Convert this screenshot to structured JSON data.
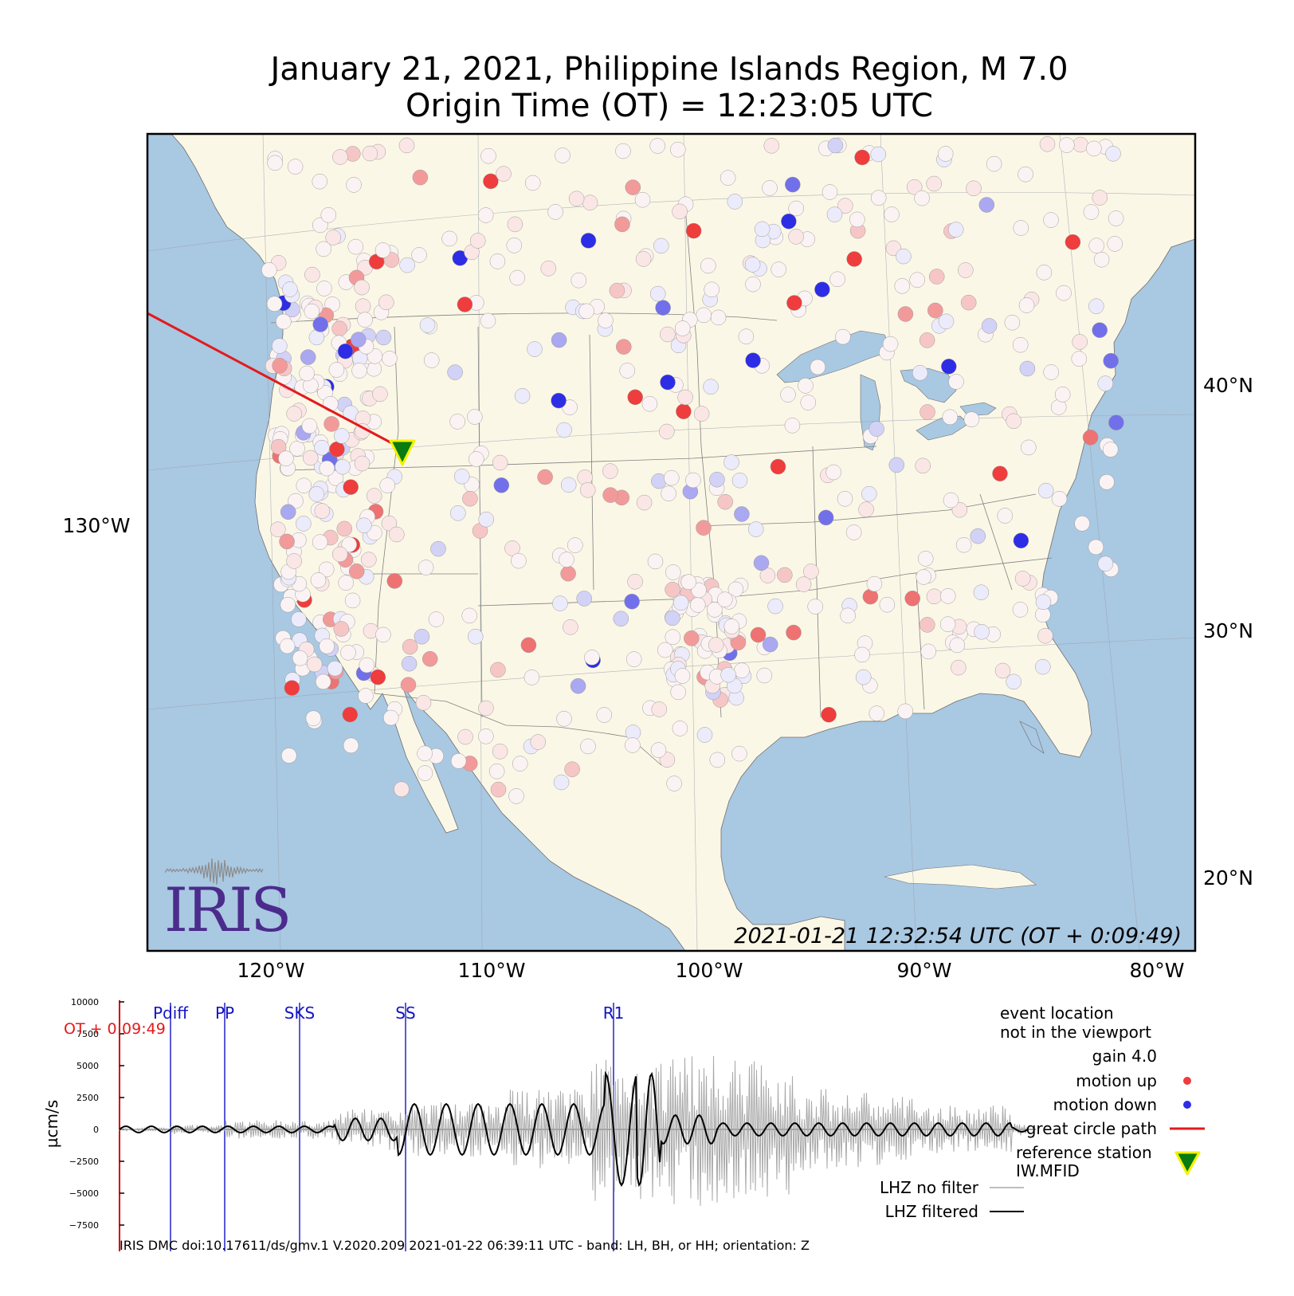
{
  "title": {
    "line1": "January 21, 2021, Philippine Islands Region, M 7.0",
    "line2": "Origin Time (OT) = 12:23:05 UTC"
  },
  "map": {
    "timestamp": "2021-01-21 12:32:54 UTC (OT + 0:09:49)",
    "lon_labels": [
      "120°W",
      "110°W",
      "100°W",
      "90°W",
      "80°W"
    ],
    "lat_labels": [
      "40°N",
      "30°N",
      "20°N"
    ],
    "left_lon_label": "130°W",
    "logo_text": "IRIS",
    "colors": {
      "land": "#fbf7e6",
      "water": "#a9c8e2",
      "motion_up": "#ef3c3c",
      "motion_down": "#2d2de6",
      "great_circle": "#e31a1c",
      "reference_fill": "#0a7a12",
      "reference_outline": "#f2f200"
    }
  },
  "seismogram": {
    "ylabel": "µcm/s",
    "ot_label": "OT + 0:09:49",
    "yticks": [
      "10000",
      "7500",
      "5000",
      "2500",
      "0",
      "−2500",
      "−5000",
      "−7500"
    ],
    "phases": [
      "Pdiff",
      "PP",
      "SKS",
      "SS",
      "R1"
    ],
    "legend": {
      "event_location_1": "event location",
      "event_location_2": "not in the viewport",
      "gain": "gain  4.0",
      "motion_up": "motion up",
      "motion_down": "motion down",
      "great_circle": "great circle path",
      "reference_station_1": "reference station",
      "reference_station_2": "IW.MFID",
      "no_filter": "LHZ no filter",
      "filtered": "LHZ filtered"
    },
    "footer": "IRIS DMC doi:10.17611/ds/gmv.1 V.2020.209 2021-01-22 06:39:11 UTC - band: LH, BH, or HH; orientation: Z"
  }
}
